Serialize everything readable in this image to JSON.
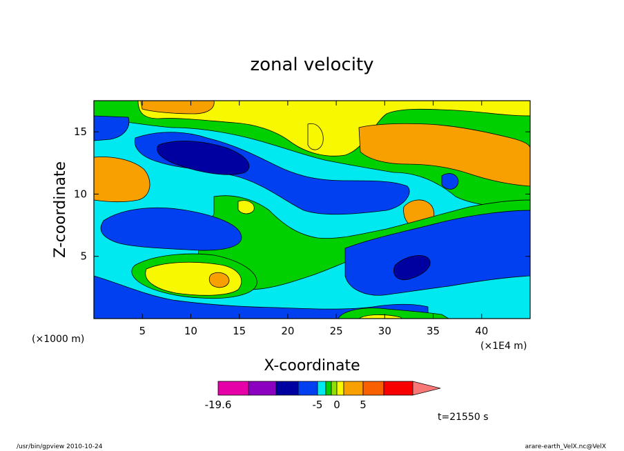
{
  "chart_data": {
    "type": "heatmap",
    "title": "zonal velocity",
    "xlabel": "X-coordinate",
    "ylabel": "Z-coordinate",
    "x_unit_left": "(×1000 m)",
    "x_unit_right": "(×1E4 m)",
    "xlim": [
      0,
      45
    ],
    "ylim": [
      0,
      17.5
    ],
    "x_ticks": [
      5,
      10,
      15,
      20,
      25,
      30,
      35,
      40
    ],
    "y_ticks": [
      5,
      10,
      15
    ],
    "colorbar": {
      "levels": [
        -19.6,
        -17,
        -14,
        -11,
        -8,
        -5,
        -3,
        -1.5,
        -0.5,
        0,
        0.5,
        1.5,
        3,
        5,
        8,
        11,
        14
      ],
      "labels": [
        "-19.6",
        "-5",
        "0",
        "5"
      ],
      "colors": [
        "#e600a8",
        "#8c00c0",
        "#0000a0",
        "#0040f0",
        "#00e8f0",
        "#00d000",
        "#90e000",
        "#f8f800",
        "#f8a000",
        "#f86000",
        "#f80000",
        "#f87878"
      ]
    },
    "time_label": "t=21550 s",
    "footer_left": "/usr/bin/gpview  2010-10-24",
    "footer_right": "arare-earth_VelX.nc@VelX"
  }
}
